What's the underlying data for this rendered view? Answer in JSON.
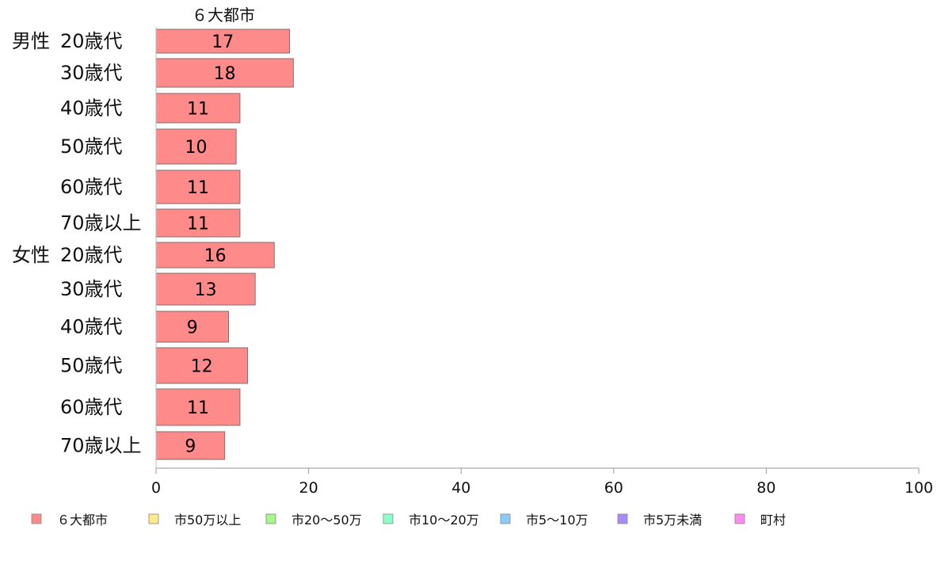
{
  "chart_data": {
    "type": "bar",
    "orientation": "horizontal",
    "stacked": true,
    "series_title": "６大都市",
    "groups": [
      {
        "label": "男性",
        "categories": [
          "20歳代",
          "30歳代",
          "40歳代",
          "50歳代",
          "60歳代",
          "70歳以上"
        ]
      },
      {
        "label": "女性",
        "categories": [
          "20歳代",
          "30歳代",
          "40歳代",
          "50歳代",
          "60歳代",
          "70歳以上"
        ]
      }
    ],
    "series": [
      {
        "name": "６大都市",
        "color": "#ff8a8a",
        "values": [
          17.5,
          18,
          11,
          10.5,
          11,
          11,
          15.5,
          13,
          9.5,
          12,
          11,
          9
        ],
        "labels": [
          "17",
          "18",
          "11",
          "10",
          "11",
          "11",
          "16",
          "13",
          "9",
          "12",
          "11",
          "9"
        ]
      }
    ],
    "xlim": [
      0,
      100
    ],
    "xticks": [
      0,
      20,
      40,
      60,
      80,
      100
    ],
    "legend": {
      "placement": "bottom",
      "items": [
        {
          "name": "６大都市",
          "color": "#ff8a8a"
        },
        {
          "name": "市50万以上",
          "color": "#ffe98a"
        },
        {
          "name": "市20～50万",
          "color": "#a8f58a"
        },
        {
          "name": "市10～20万",
          "color": "#8affc8"
        },
        {
          "name": "市5～10万",
          "color": "#8acbff"
        },
        {
          "name": "市5万未満",
          "color": "#a98aff"
        },
        {
          "name": "町村",
          "color": "#ff8af0"
        }
      ]
    },
    "grid": false
  }
}
